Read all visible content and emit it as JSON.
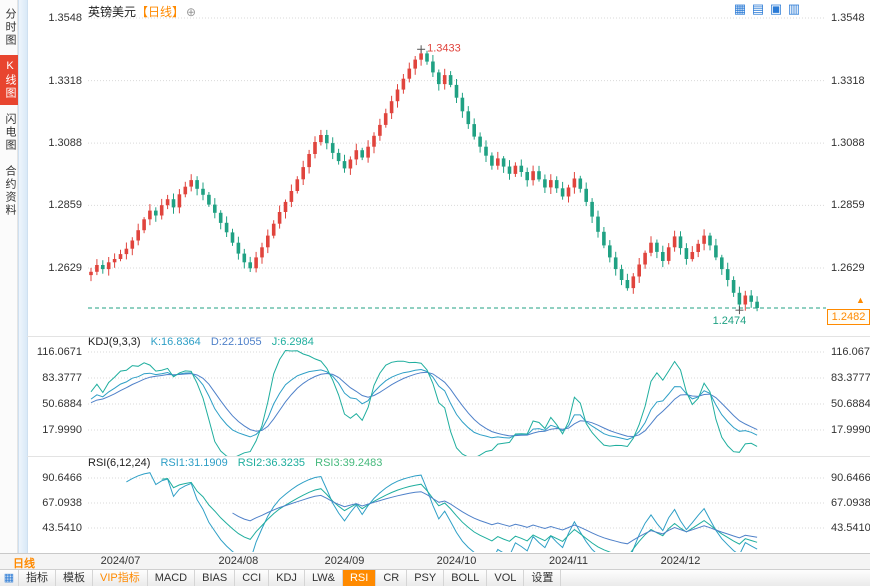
{
  "header": {
    "symbol": "英镑美元",
    "period_tag": "【日线】",
    "add_button": "⊕",
    "layout_icons": [
      "▦",
      "▤",
      "▣",
      "▥"
    ]
  },
  "sidebar": {
    "items": [
      {
        "label": "分时图",
        "active": false
      },
      {
        "label": "K线图",
        "active": true
      },
      {
        "label": "闪电图",
        "active": false
      },
      {
        "label": "合约资料",
        "active": false
      }
    ]
  },
  "main_chart": {
    "y_labels": [
      "1.3548",
      "1.3318",
      "1.3088",
      "1.2859",
      "1.2629"
    ],
    "high_label": "1.3433",
    "low_label": "1.2474",
    "last_price": "1.2482",
    "up_arrow": "▲"
  },
  "kdj_panel": {
    "title": "KDJ(9,3,3)",
    "k_label": "K:16.8364",
    "d_label": "D:22.1055",
    "j_label": "J:6.2984",
    "y_labels": [
      "116.0671",
      "83.3777",
      "50.6884",
      "17.9990"
    ]
  },
  "rsi_panel": {
    "title": "RSI(6,12,24)",
    "rsi1_label": "RSI1:31.1909",
    "rsi2_label": "RSI2:36.3235",
    "rsi3_label": "RSI3:39.2483",
    "y_labels": [
      "90.6466",
      "67.0938",
      "43.5410"
    ]
  },
  "x_axis": {
    "period": "日线"
  },
  "bottom_bar": {
    "tabs": [
      {
        "label": "指标"
      },
      {
        "label": "模板"
      },
      {
        "label": "VIP指标",
        "vip": true
      },
      {
        "label": "MACD"
      },
      {
        "label": "BIAS"
      },
      {
        "label": "CCI"
      },
      {
        "label": "KDJ"
      },
      {
        "label": "LW&"
      },
      {
        "label": "RSI",
        "active": true
      },
      {
        "label": "CR"
      },
      {
        "label": "PSY"
      },
      {
        "label": "BOLL"
      },
      {
        "label": "VOL"
      },
      {
        "label": "设置"
      }
    ]
  },
  "chart_data": {
    "type": "candlestick",
    "title": "英镑美元 日线",
    "closes": [
      1.2615,
      1.264,
      1.2625,
      1.265,
      1.2662,
      1.268,
      1.27,
      1.273,
      1.2768,
      1.2808,
      1.284,
      1.2822,
      1.286,
      1.2882,
      1.2852,
      1.29,
      1.2928,
      1.2952,
      1.292,
      1.2898,
      1.2862,
      1.2832,
      1.2795,
      1.276,
      1.2722,
      1.2682,
      1.265,
      1.2628,
      1.2668,
      1.2705,
      1.2748,
      1.2792,
      1.2835,
      1.2872,
      1.2912,
      1.2955,
      1.3,
      1.3048,
      1.3092,
      1.3118,
      1.3088,
      1.3052,
      1.3022,
      1.2995,
      1.3028,
      1.3062,
      1.3035,
      1.3075,
      1.3115,
      1.3155,
      1.3198,
      1.3242,
      1.3285,
      1.3325,
      1.3362,
      1.3395,
      1.3418,
      1.3388,
      1.3348,
      1.3305,
      1.3338,
      1.3302,
      1.3255,
      1.3205,
      1.3158,
      1.3112,
      1.3075,
      1.3042,
      1.3005,
      1.3032,
      1.3002,
      1.2975,
      1.3005,
      1.2982,
      1.2952,
      1.2985,
      1.2955,
      1.2925,
      1.2952,
      1.2922,
      1.2892,
      1.2925,
      1.2958,
      1.292,
      1.2872,
      1.2818,
      1.2762,
      1.2712,
      1.2668,
      1.2625,
      1.2585,
      1.2555,
      1.2598,
      1.2642,
      1.2685,
      1.2722,
      1.2688,
      1.2655,
      1.2705,
      1.2745,
      1.2702,
      1.2662,
      1.2688,
      1.2718,
      1.2748,
      1.2712,
      1.2668,
      1.2625,
      1.2585,
      1.2538,
      1.2495,
      1.2528,
      1.2505,
      1.2482
    ],
    "high_marker": {
      "index": 56,
      "value": 1.3433
    },
    "low_marker": {
      "index": 110,
      "value": 1.2474
    },
    "last_close": 1.2482,
    "month_boundaries": [
      {
        "label": "2024/07",
        "index": 5
      },
      {
        "label": "2024/08",
        "index": 25
      },
      {
        "label": "2024/09",
        "index": 43
      },
      {
        "label": "2024/10",
        "index": 62
      },
      {
        "label": "2024/11",
        "index": 81
      },
      {
        "label": "2024/12",
        "index": 100
      }
    ],
    "main_y_ticks": [
      1.3548,
      1.3318,
      1.3088,
      1.2859,
      1.2629
    ],
    "kdj": {
      "params": [
        9,
        3,
        3
      ],
      "k": 16.8364,
      "d": 22.1055,
      "j": 6.2984,
      "y_ticks": [
        116.0671,
        83.3777,
        50.6884,
        17.999
      ]
    },
    "rsi": {
      "periods": [
        6,
        12,
        24
      ],
      "values": [
        31.1909,
        36.3235,
        39.2483
      ],
      "y_ticks": [
        90.6466,
        67.0938,
        43.541
      ]
    },
    "colors": {
      "up": "#e0443d",
      "down": "#20a183",
      "line1": "#2e9fc6",
      "line2": "#4f81c9",
      "line3": "#1fae9e",
      "dashed": "#20a183",
      "price_box": "#ff8a00",
      "grid": "#d9d9d9"
    }
  }
}
